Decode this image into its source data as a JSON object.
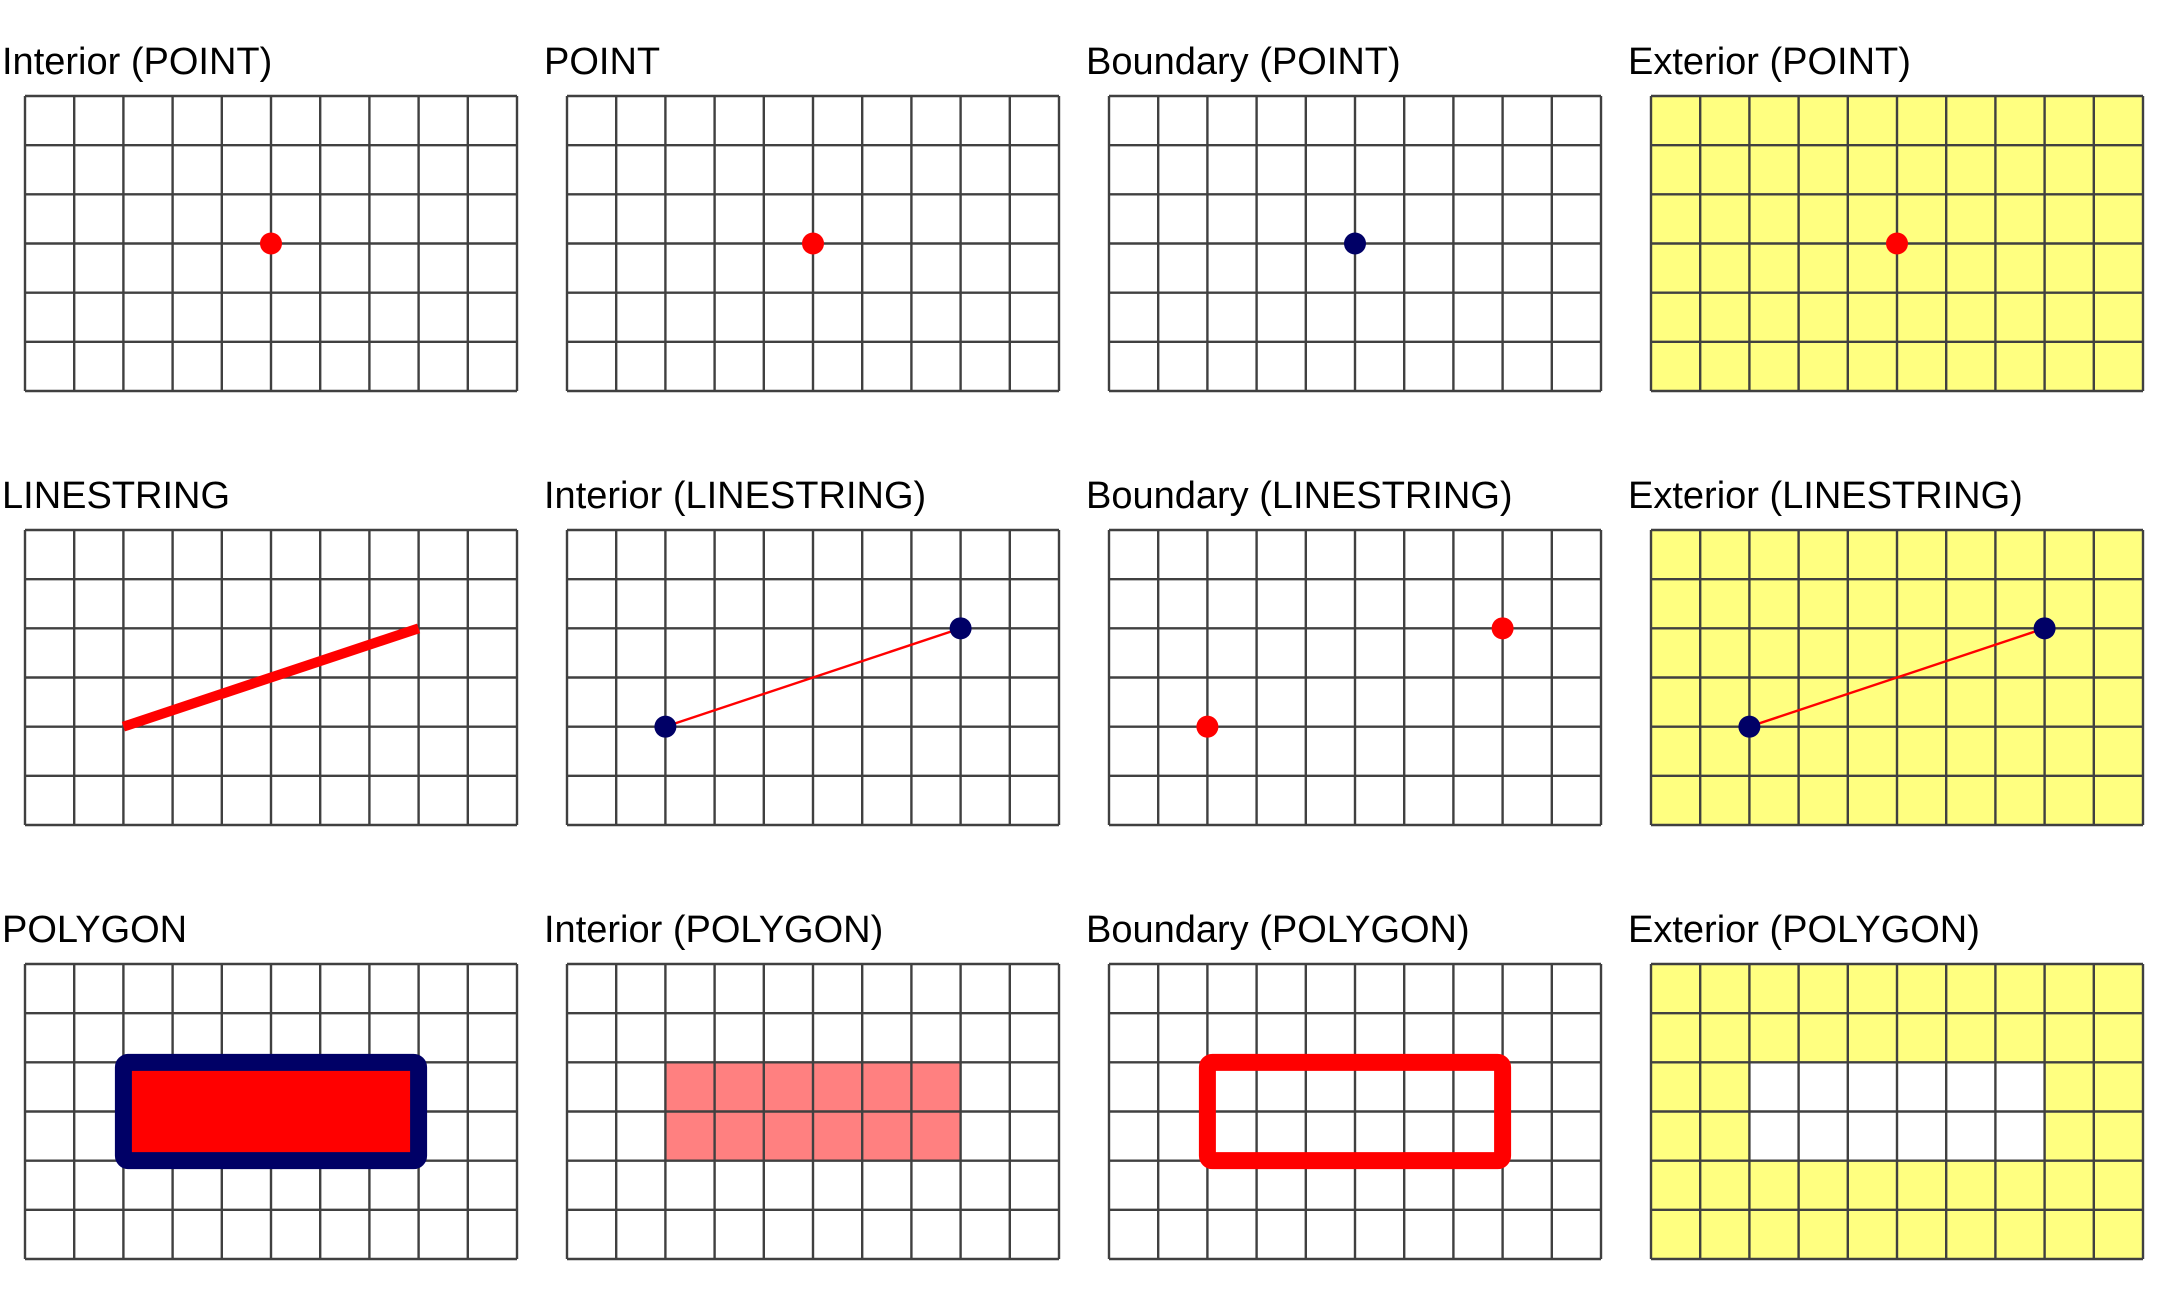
{
  "colors": {
    "grid_line": "#404040",
    "exterior_fill": "#FFFF80",
    "geometry_red": "#FF0000",
    "boundary_navy": "#000066",
    "interior_fill": "#FF8080",
    "background": "#FFFFFF"
  },
  "grid": {
    "cols": 10,
    "rows": 6
  },
  "panels": [
    {
      "id": "interior-point",
      "title": "Interior (POINT)",
      "exterior": false,
      "points": [
        {
          "x": 5,
          "y": 3,
          "color": "geometry_red"
        }
      ]
    },
    {
      "id": "point",
      "title": "POINT",
      "exterior": false,
      "points": [
        {
          "x": 5,
          "y": 3,
          "color": "geometry_red"
        }
      ]
    },
    {
      "id": "boundary-point",
      "title": "Boundary (POINT)",
      "exterior": false,
      "points": [
        {
          "x": 5,
          "y": 3,
          "color": "boundary_navy"
        }
      ]
    },
    {
      "id": "exterior-point",
      "title": "Exterior (POINT)",
      "exterior": true,
      "points": [
        {
          "x": 5,
          "y": 3,
          "color": "geometry_red"
        }
      ]
    },
    {
      "id": "linestring",
      "title": "LINESTRING",
      "exterior": false,
      "lines": [
        {
          "from": [
            2,
            4
          ],
          "to": [
            8,
            2
          ],
          "color": "geometry_red",
          "weight": "thick"
        }
      ]
    },
    {
      "id": "interior-linestring",
      "title": "Interior (LINESTRING)",
      "exterior": false,
      "lines": [
        {
          "from": [
            2,
            4
          ],
          "to": [
            8,
            2
          ],
          "color": "geometry_red",
          "weight": "thin"
        }
      ],
      "points": [
        {
          "x": 2,
          "y": 4,
          "color": "boundary_navy"
        },
        {
          "x": 8,
          "y": 2,
          "color": "boundary_navy"
        }
      ]
    },
    {
      "id": "boundary-linestring",
      "title": "Boundary (LINESTRING)",
      "exterior": false,
      "points": [
        {
          "x": 2,
          "y": 4,
          "color": "geometry_red"
        },
        {
          "x": 8,
          "y": 2,
          "color": "geometry_red"
        }
      ]
    },
    {
      "id": "exterior-linestring",
      "title": "Exterior (LINESTRING)",
      "exterior": true,
      "lines": [
        {
          "from": [
            2,
            4
          ],
          "to": [
            8,
            2
          ],
          "color": "geometry_red",
          "weight": "thin"
        }
      ],
      "points": [
        {
          "x": 2,
          "y": 4,
          "color": "boundary_navy"
        },
        {
          "x": 8,
          "y": 2,
          "color": "boundary_navy"
        }
      ]
    },
    {
      "id": "polygon",
      "title": "POLYGON",
      "exterior": false,
      "rects": [
        {
          "x0": 2,
          "y0": 2,
          "x1": 8,
          "y1": 4,
          "fill": "geometry_red",
          "stroke": "boundary_navy",
          "weight": "thick"
        }
      ]
    },
    {
      "id": "interior-polygon",
      "title": "Interior (POLYGON)",
      "exterior": false,
      "rects": [
        {
          "x0": 2,
          "y0": 2,
          "x1": 8,
          "y1": 4,
          "fill": "interior_fill",
          "stroke": null,
          "overlay": true
        }
      ]
    },
    {
      "id": "boundary-polygon",
      "title": "Boundary (POLYGON)",
      "exterior": false,
      "rects": [
        {
          "x0": 2,
          "y0": 2,
          "x1": 8,
          "y1": 4,
          "fill": null,
          "stroke": "geometry_red",
          "weight": "thick"
        }
      ]
    },
    {
      "id": "exterior-polygon",
      "title": "Exterior (POLYGON)",
      "exterior": true,
      "rects": [
        {
          "x0": 2,
          "y0": 2,
          "x1": 8,
          "y1": 4,
          "fill": "background",
          "stroke": null,
          "underlay": true
        }
      ]
    }
  ]
}
